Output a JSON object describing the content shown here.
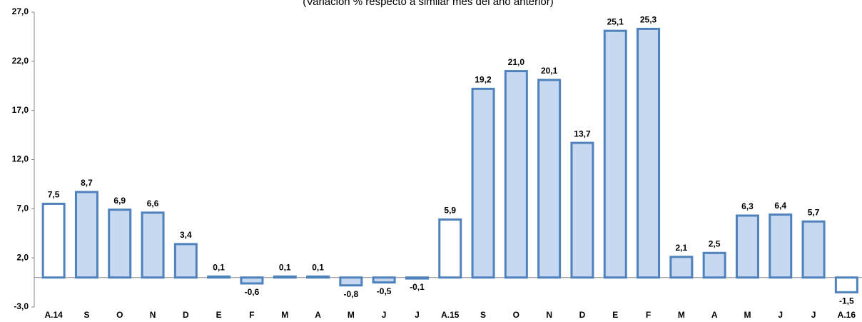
{
  "chart_data": {
    "type": "bar",
    "subtitle": "(Variación % respecto a similar mes del año anterior)",
    "categories": [
      "A.14",
      "S",
      "O",
      "N",
      "D",
      "E",
      "F",
      "M",
      "A",
      "M",
      "J",
      "J",
      "A.15",
      "S",
      "O",
      "N",
      "D",
      "E",
      "F",
      "M",
      "A",
      "M",
      "J",
      "J",
      "A.16"
    ],
    "values": [
      7.5,
      8.7,
      6.9,
      6.6,
      3.4,
      0.1,
      -0.6,
      0.1,
      0.1,
      -0.8,
      -0.5,
      -0.1,
      5.9,
      19.2,
      21.0,
      20.1,
      13.7,
      25.1,
      25.3,
      2.1,
      2.5,
      6.3,
      6.4,
      5.7,
      -1.5
    ],
    "value_labels": [
      "7,5",
      "8,7",
      "6,9",
      "6,6",
      "3,4",
      "0,1",
      "-0,6",
      "0,1",
      "0,1",
      "-0,8",
      "-0,5",
      "-0,1",
      "5,9",
      "19,2",
      "21,0",
      "20,1",
      "13,7",
      "25,1",
      "25,3",
      "2,1",
      "2,5",
      "6,3",
      "6,4",
      "5,7",
      "-1,5"
    ],
    "colors": [
      "#ffffff",
      "#c6d9f1",
      "#c6d9f1",
      "#c6d9f1",
      "#c6d9f1",
      "#c6d9f1",
      "#c6d9f1",
      "#c6d9f1",
      "#c6d9f1",
      "#c6d9f1",
      "#c6d9f1",
      "#c6d9f1",
      "#ffffff",
      "#c6d9f1",
      "#c6d9f1",
      "#c6d9f1",
      "#c6d9f1",
      "#c6d9f1",
      "#c6d9f1",
      "#c6d9f1",
      "#c6d9f1",
      "#c6d9f1",
      "#c6d9f1",
      "#c6d9f1",
      "#ffffff"
    ],
    "edge_color": "#4f81bd",
    "ylim": [
      -3,
      27
    ],
    "yticks": [
      {
        "value": -3,
        "label": "-3,0"
      },
      {
        "value": 2,
        "label": "2,0"
      },
      {
        "value": 7,
        "label": "7,0"
      },
      {
        "value": 12,
        "label": "12,0"
      },
      {
        "value": 17,
        "label": "17,0"
      },
      {
        "value": 22,
        "label": "22,0"
      },
      {
        "value": 27,
        "label": "27,0"
      }
    ],
    "grid": false
  }
}
